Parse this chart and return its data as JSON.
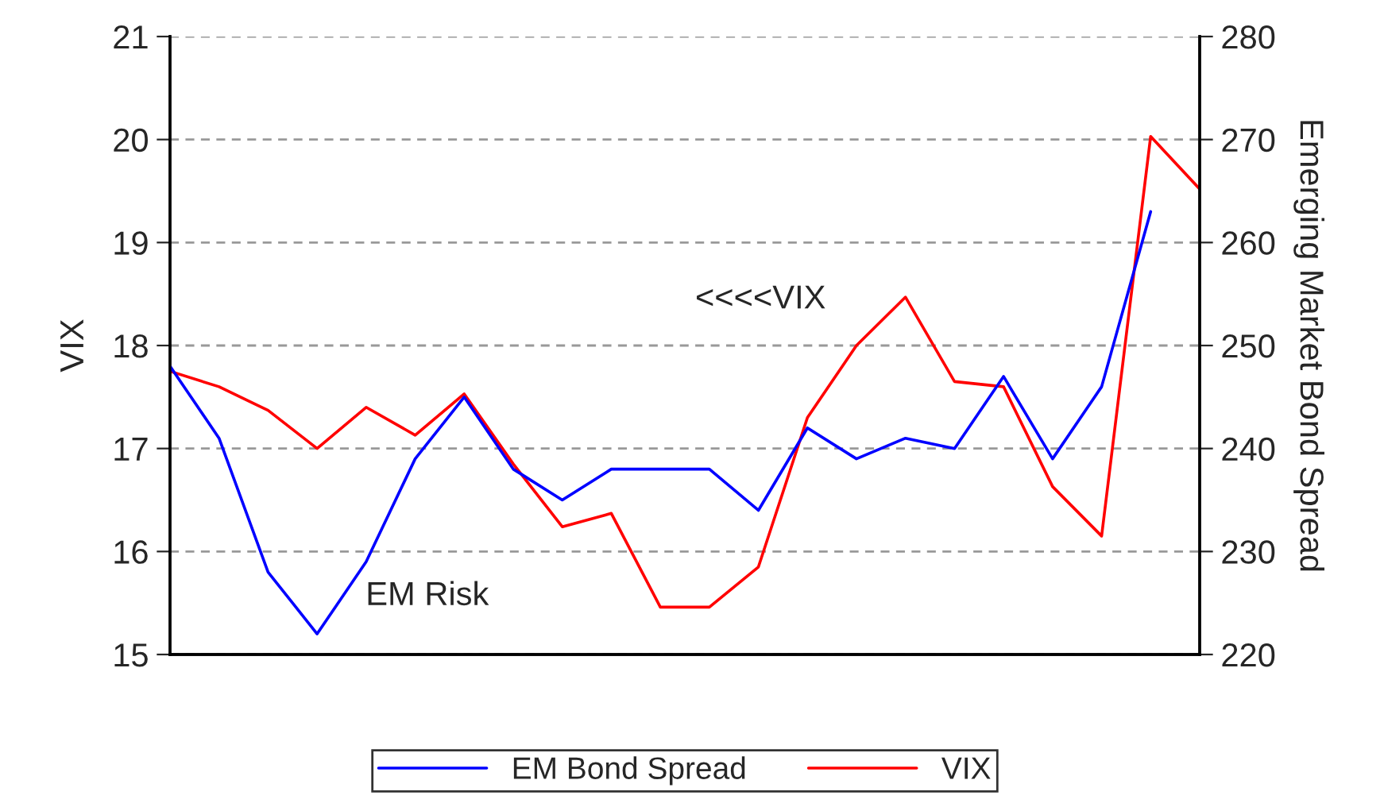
{
  "chart_data": {
    "type": "line",
    "categories": [
      null,
      null,
      null,
      null,
      null,
      null,
      null,
      null,
      null,
      null,
      null,
      null,
      null,
      null,
      null,
      null,
      null,
      null,
      null,
      null,
      null,
      null
    ],
    "series": [
      {
        "name": "EM Bond Spread",
        "color": "#0000ff",
        "axis": "y2",
        "values": [
          248,
          241,
          228,
          222,
          229,
          239,
          245,
          238,
          235,
          238,
          238,
          238,
          234,
          242,
          239,
          241,
          240,
          247,
          239,
          246,
          263,
          null
        ]
      },
      {
        "name": "VIX",
        "color": "#ff0000",
        "values": [
          17.75,
          17.6,
          17.37,
          17.0,
          17.4,
          17.13,
          17.53,
          16.85,
          16.24,
          16.37,
          15.46,
          15.46,
          15.85,
          17.3,
          18.0,
          18.47,
          17.65,
          17.6,
          16.63,
          16.15,
          20.03,
          19.52
        ]
      }
    ],
    "ylabel": "VIX",
    "y2label": "Emerging Market Bond Spread",
    "ylim": [
      15,
      21
    ],
    "yticks": [
      15,
      16,
      17,
      18,
      19,
      20,
      21
    ],
    "y2lim": [
      220,
      280
    ],
    "y2ticks": [
      220,
      230,
      240,
      250,
      260,
      270,
      280
    ],
    "annotations": [
      "EM Risk",
      "<<<<VIX"
    ],
    "grid": "y",
    "legend": "bottom",
    "line_style": "solid"
  }
}
